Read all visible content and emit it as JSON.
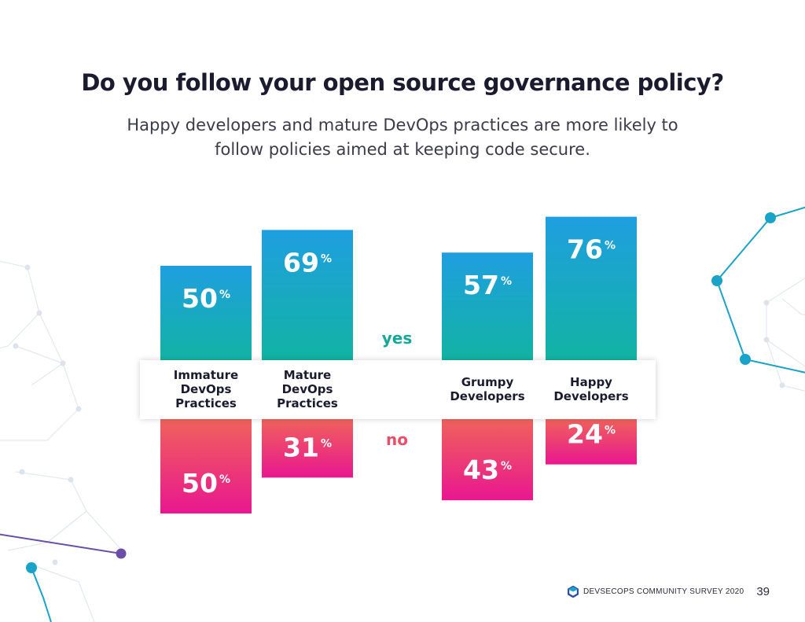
{
  "title": "Do you follow your open source governance policy?",
  "subtitle": "Happy developers and mature DevOps practices are more likely to follow policies aimed at keeping code secure.",
  "footer": {
    "brand": "DEVSECOPS COMMUNITY SURVEY 2020",
    "page_number": "39",
    "logo_icon": "hexagon-logo-icon"
  },
  "colors": {
    "yes_top": "#1f9fe0",
    "yes_bottom": "#12b3a3",
    "no_top": "#f0625b",
    "no_bottom": "#e8178f",
    "yes_label": "#14a898",
    "no_label": "#ea4f6a",
    "deco_teal": "#1aa3c9",
    "deco_purple": "#6b4ea8"
  },
  "chart_data": {
    "type": "bar",
    "categories": [
      "Immature DevOps Practices",
      "Mature DevOps Practices",
      "Grumpy Developers",
      "Happy Developers"
    ],
    "category_lines": [
      [
        "Immature",
        "DevOps",
        "Practices"
      ],
      [
        "Mature",
        "DevOps",
        "Practices"
      ],
      [
        "Grumpy",
        "Developers"
      ],
      [
        "Happy",
        "Developers"
      ]
    ],
    "series": [
      {
        "name": "yes",
        "values": [
          50,
          69,
          57,
          76
        ]
      },
      {
        "name": "no",
        "values": [
          50,
          31,
          43,
          24
        ]
      }
    ],
    "unit": "%",
    "ylim": [
      0,
      100
    ],
    "grid": false
  }
}
